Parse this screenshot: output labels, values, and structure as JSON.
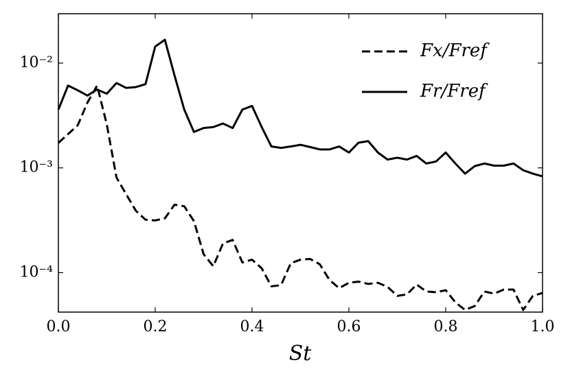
{
  "chart_data": {
    "type": "line",
    "xlabel": "St",
    "x": [
      0.0,
      0.02,
      0.04,
      0.06,
      0.08,
      0.1,
      0.12,
      0.14,
      0.16,
      0.18,
      0.2,
      0.22,
      0.24,
      0.26,
      0.28,
      0.3,
      0.32,
      0.34,
      0.36,
      0.38,
      0.4,
      0.42,
      0.44,
      0.46,
      0.48,
      0.5,
      0.52,
      0.54,
      0.56,
      0.58,
      0.6,
      0.62,
      0.64,
      0.66,
      0.68,
      0.7,
      0.72,
      0.74,
      0.76,
      0.78,
      0.8,
      0.82,
      0.84,
      0.86,
      0.88,
      0.9,
      0.92,
      0.94,
      0.96,
      0.98,
      1.0
    ],
    "series": [
      {
        "name": "Fx/Fref",
        "color": "#000000",
        "linestyle": "dashed",
        "values": [
          0.00173,
          0.0021,
          0.00255,
          0.0042,
          0.0061,
          0.0026,
          0.00081,
          0.00056,
          0.00039,
          0.00032,
          0.000315,
          0.00033,
          0.000445,
          0.00043,
          0.00031,
          0.00015,
          0.000115,
          0.00019,
          0.000205,
          0.000125,
          0.000133,
          0.00011,
          7.4e-05,
          7.6e-05,
          0.000123,
          0.000133,
          0.000135,
          0.00012,
          8.5e-05,
          7.1e-05,
          8e-05,
          8.2e-05,
          7.8e-05,
          8e-05,
          7.3e-05,
          6e-05,
          6.2e-05,
          7.7e-05,
          6.6e-05,
          6.5e-05,
          6.8e-05,
          5.2e-05,
          4.4e-05,
          4.8e-05,
          6.6e-05,
          6.3e-05,
          6.9e-05,
          6.9e-05,
          4.4e-05,
          6e-05,
          6.4e-05
        ]
      },
      {
        "name": "Fr/Fref",
        "color": "#000000",
        "linestyle": "solid",
        "values": [
          0.0036,
          0.0061,
          0.0055,
          0.0049,
          0.0056,
          0.0051,
          0.00645,
          0.0058,
          0.0059,
          0.0063,
          0.0144,
          0.0167,
          0.0076,
          0.0036,
          0.0022,
          0.0024,
          0.00245,
          0.00265,
          0.0024,
          0.0036,
          0.0039,
          0.00245,
          0.0016,
          0.00155,
          0.0016,
          0.00166,
          0.00158,
          0.0015,
          0.0015,
          0.0016,
          0.0014,
          0.00174,
          0.0018,
          0.0014,
          0.0012,
          0.00125,
          0.0012,
          0.0013,
          0.0011,
          0.00115,
          0.0014,
          0.0011,
          0.00088,
          0.00104,
          0.0011,
          0.00105,
          0.00105,
          0.0011,
          0.00095,
          0.00088,
          0.00083
        ]
      }
    ],
    "xlim": [
      0,
      1
    ],
    "ylim": [
      4.2e-05,
      0.0296
    ],
    "xticks": [
      {
        "value": 0,
        "label": "0.0"
      },
      0.2,
      0.4,
      0.6,
      0.8,
      {
        "value": 1,
        "label": "1.0"
      }
    ],
    "yticks": [
      {
        "value": 0.0001,
        "label": "10⁻⁴"
      },
      {
        "value": 0.001,
        "label": "10⁻³"
      },
      {
        "value": 0.01,
        "label": "10⁻²"
      }
    ],
    "yscale": "log",
    "grid": false,
    "legend": "upper right"
  }
}
